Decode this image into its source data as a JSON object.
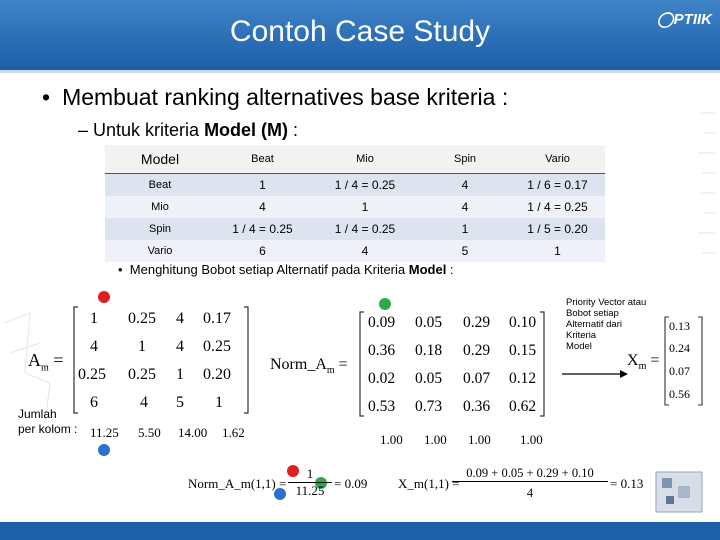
{
  "header": {
    "title": "Contoh Case Study",
    "logo": "PTIIK"
  },
  "bullet1": "Membuat ranking alternatives base kriteria :",
  "bullet2": {
    "prefix": "Untuk kriteria ",
    "bold": "Model (M)",
    "suffix": " :"
  },
  "table": {
    "corner": "Model",
    "columns": [
      "Beat",
      "Mio",
      "Spin",
      "Vario"
    ],
    "rows": [
      {
        "label": "Beat",
        "cells": [
          "1",
          "1 / 4 = 0.25",
          "4",
          "1 / 6 = 0.17"
        ]
      },
      {
        "label": "Mio",
        "cells": [
          "4",
          "1",
          "4",
          "1 / 4 = 0.25"
        ]
      },
      {
        "label": "Spin",
        "cells": [
          "1 / 4 = 0.25",
          "1 / 4 = 0.25",
          "1",
          "1 / 5 = 0.20"
        ]
      },
      {
        "label": "Vario",
        "cells": [
          "6",
          "4",
          "5",
          "1"
        ]
      }
    ]
  },
  "bullet3": {
    "prefix": "Menghitung Bobot setiap Alternatif pada Kriteria ",
    "bold": "Model",
    "suffix": " :"
  },
  "matrix_a": {
    "symbol": "A",
    "sub": "m",
    "rows": [
      [
        "1",
        "0.25",
        "4",
        "0.17"
      ],
      [
        "4",
        "1",
        "4",
        "0.25"
      ],
      [
        "0.25",
        "0.25",
        "1",
        "0.20"
      ],
      [
        "6",
        "4",
        "5",
        "1"
      ]
    ]
  },
  "sum_label": [
    "Jumlah",
    "per kolom :"
  ],
  "sums": [
    "11.25",
    "5.50",
    "14.00",
    "1.62"
  ],
  "norm_matrix": {
    "label": "Norm_A",
    "sub": "m",
    "rows": [
      [
        "0.09",
        "0.05",
        "0.29",
        "0.10"
      ],
      [
        "0.36",
        "0.18",
        "0.29",
        "0.15"
      ],
      [
        "0.02",
        "0.05",
        "0.07",
        "0.12"
      ],
      [
        "0.53",
        "0.73",
        "0.36",
        "0.62"
      ]
    ],
    "sums": [
      "1.00",
      "1.00",
      "1.00",
      "1.00"
    ]
  },
  "priority_label": [
    "Priority Vector  atau",
    "Bobot setiap",
    "Alternatif dari",
    "Kriteria",
    "Model"
  ],
  "priority_vector": {
    "symbol": "X",
    "sub": "m",
    "values": [
      "0.13",
      "0.24",
      "0.07",
      "0.56"
    ]
  },
  "formula1": {
    "lhs": "Norm_A_m(1,1) =",
    "num": "1",
    "den": "11.25",
    "result": "= 0.09"
  },
  "formula2": {
    "lhs": "X_m(1,1) =",
    "num": "0.09 + 0.05 + 0.29 + 0.10",
    "den": "4",
    "result": "= 0.13"
  },
  "colors": {
    "header": "#2a6db5",
    "red_dot": "#e02020",
    "green_dot": "#2ea84a",
    "blue_dot": "#2a6fd1"
  }
}
